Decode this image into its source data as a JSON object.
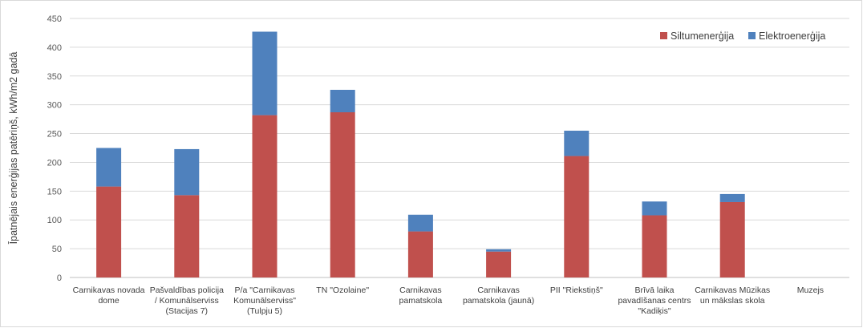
{
  "colors": {
    "heat": "#c0504d",
    "electric": "#4f81bd",
    "grid": "#d9d9d9",
    "axis": "#bfbfbf"
  },
  "chart_data": {
    "type": "bar",
    "stacked": true,
    "title": "",
    "xlabel": "",
    "ylabel": "Īpatnējais enerģijas patēriņš, kWh/m2 gadā",
    "ylim": [
      0,
      450
    ],
    "yticks": [
      0,
      50,
      100,
      150,
      200,
      250,
      300,
      350,
      400,
      450
    ],
    "grid": true,
    "legend_position": "top-right",
    "categories": [
      [
        "Carnikavas novada",
        "dome"
      ],
      [
        "Pašvaldības policija",
        "/ Komunālserviss",
        "(Stacijas 7)"
      ],
      [
        "P/a \"Carnikavas",
        "Komunālserviss\"",
        "(Tulpju 5)"
      ],
      [
        "TN \"Ozolaine\""
      ],
      [
        "Carnikavas",
        "pamatskola"
      ],
      [
        "Carnikavas",
        "pamatskola (jaunā)"
      ],
      [
        "PII \"Riekstiņš\""
      ],
      [
        "Brīvā laika",
        "pavadīšanas centrs",
        "\"Kadiķis\""
      ],
      [
        "Carnikavas Mūzikas",
        "un mākslas skola"
      ],
      [
        "Muzejs"
      ]
    ],
    "series": [
      {
        "name": "Siltumenerģija",
        "values": [
          158,
          143,
          282,
          287,
          80,
          45,
          211,
          108,
          131,
          0
        ]
      },
      {
        "name": "Elektroenerģija",
        "values": [
          67,
          80,
          145,
          39,
          29,
          4,
          44,
          24,
          14,
          0
        ]
      }
    ]
  }
}
